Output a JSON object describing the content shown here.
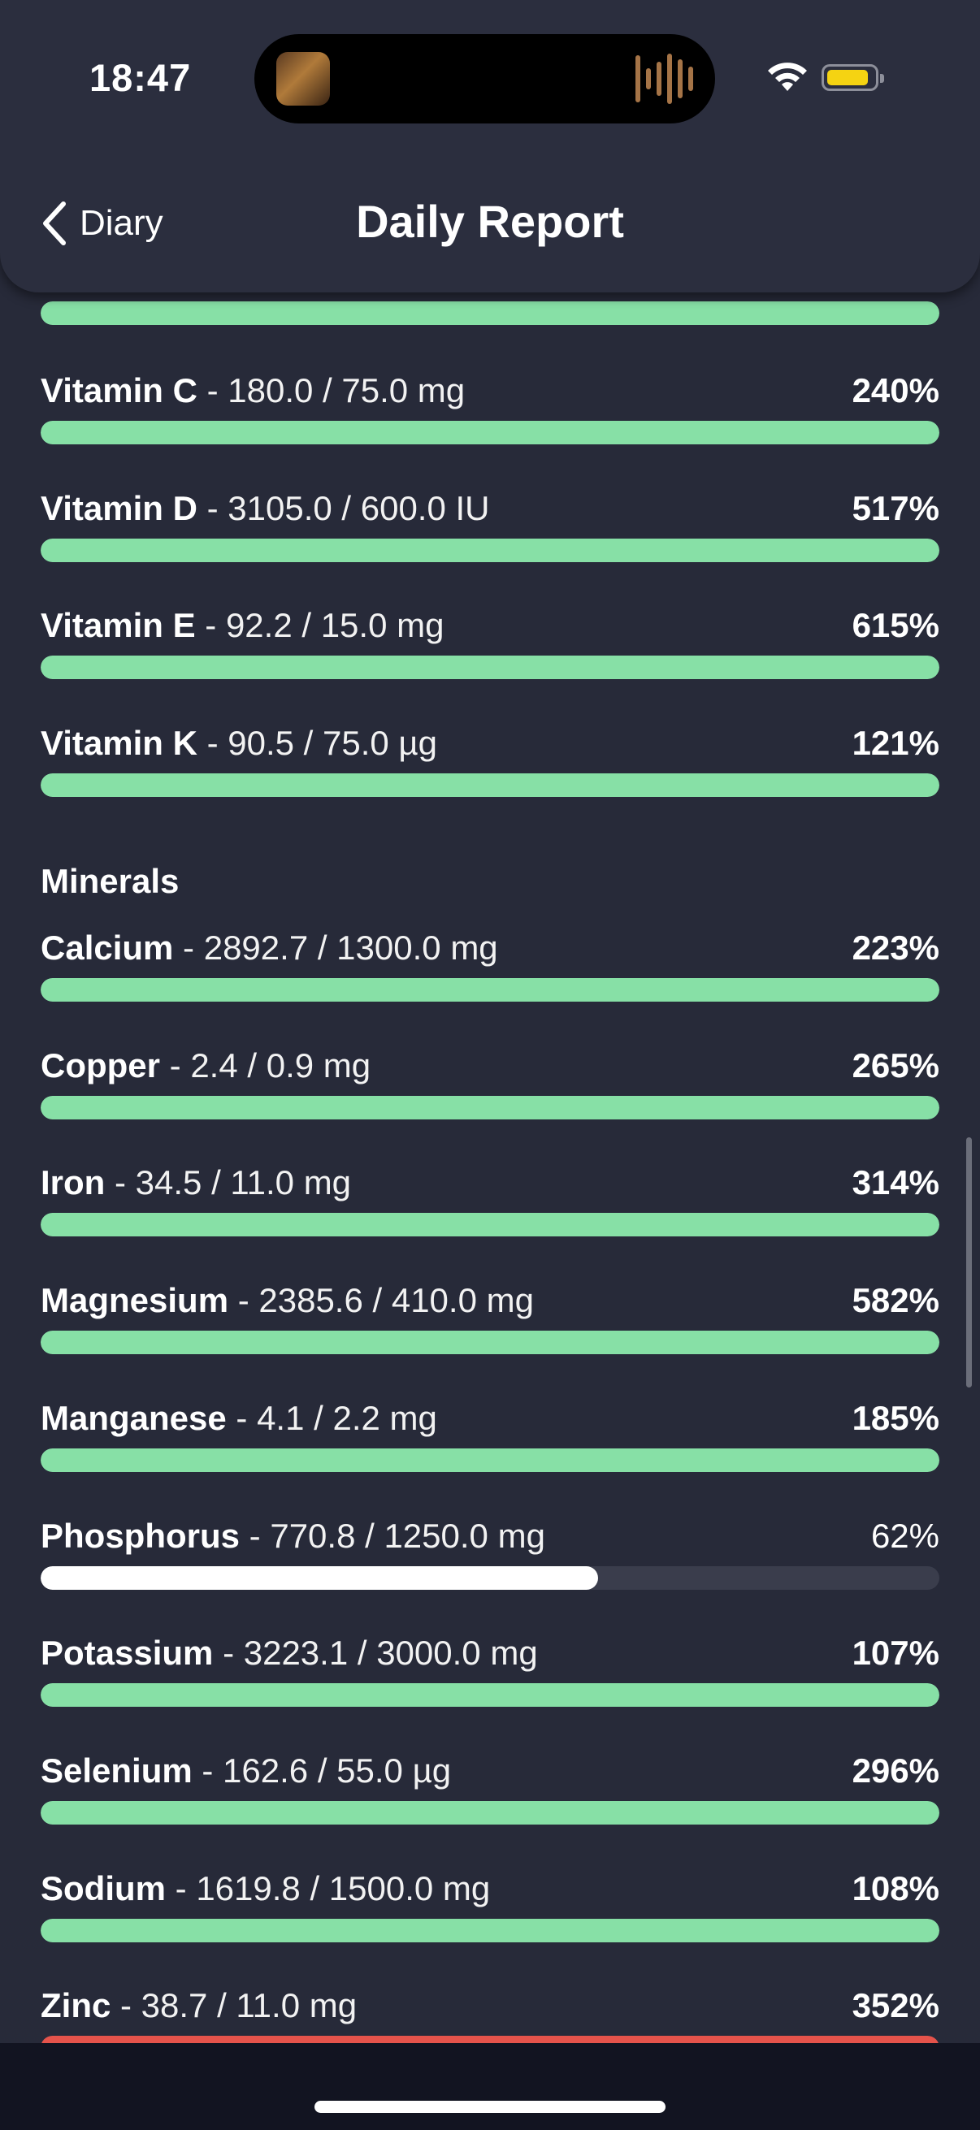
{
  "status_bar": {
    "time": "18:47"
  },
  "nav": {
    "back_label": "Diary",
    "title": "Daily Report"
  },
  "colors": {
    "good": "#87e0a6",
    "under": "#ffffff",
    "over": "#e5534b",
    "track": "#3a3d4c"
  },
  "vitamins": [
    {
      "name": "Vitamin C",
      "amount": " - 180.0 / 75.0 mg",
      "pct": "240%",
      "progress": 1.0,
      "status": "good"
    },
    {
      "name": "Vitamin D",
      "amount": " - 3105.0 / 600.0 IU",
      "pct": "517%",
      "progress": 1.0,
      "status": "good"
    },
    {
      "name": "Vitamin E",
      "amount": " - 92.2 / 15.0 mg",
      "pct": "615%",
      "progress": 1.0,
      "status": "good"
    },
    {
      "name": "Vitamin K",
      "amount": " - 90.5 / 75.0 µg",
      "pct": "121%",
      "progress": 1.0,
      "status": "good"
    }
  ],
  "minerals_heading": "Minerals",
  "minerals": [
    {
      "name": "Calcium",
      "amount": " - 2892.7 / 1300.0 mg",
      "pct": "223%",
      "progress": 1.0,
      "status": "good"
    },
    {
      "name": "Copper",
      "amount": " - 2.4 / 0.9 mg",
      "pct": "265%",
      "progress": 1.0,
      "status": "good"
    },
    {
      "name": "Iron",
      "amount": " - 34.5 / 11.0 mg",
      "pct": "314%",
      "progress": 1.0,
      "status": "good"
    },
    {
      "name": "Magnesium",
      "amount": " - 2385.6 / 410.0 mg",
      "pct": "582%",
      "progress": 1.0,
      "status": "good"
    },
    {
      "name": "Manganese",
      "amount": " - 4.1 / 2.2 mg",
      "pct": "185%",
      "progress": 1.0,
      "status": "good"
    },
    {
      "name": "Phosphorus",
      "amount": " - 770.8 / 1250.0 mg",
      "pct": "62%",
      "progress": 0.62,
      "status": "under"
    },
    {
      "name": "Potassium",
      "amount": " - 3223.1 / 3000.0 mg",
      "pct": "107%",
      "progress": 1.0,
      "status": "good"
    },
    {
      "name": "Selenium",
      "amount": " - 162.6 / 55.0 µg",
      "pct": "296%",
      "progress": 1.0,
      "status": "good"
    },
    {
      "name": "Sodium",
      "amount": " - 1619.8 / 1500.0 mg",
      "pct": "108%",
      "progress": 1.0,
      "status": "good"
    },
    {
      "name": "Zinc",
      "amount": " - 38.7 / 11.0 mg",
      "pct": "352%",
      "progress": 1.0,
      "status": "over"
    }
  ]
}
